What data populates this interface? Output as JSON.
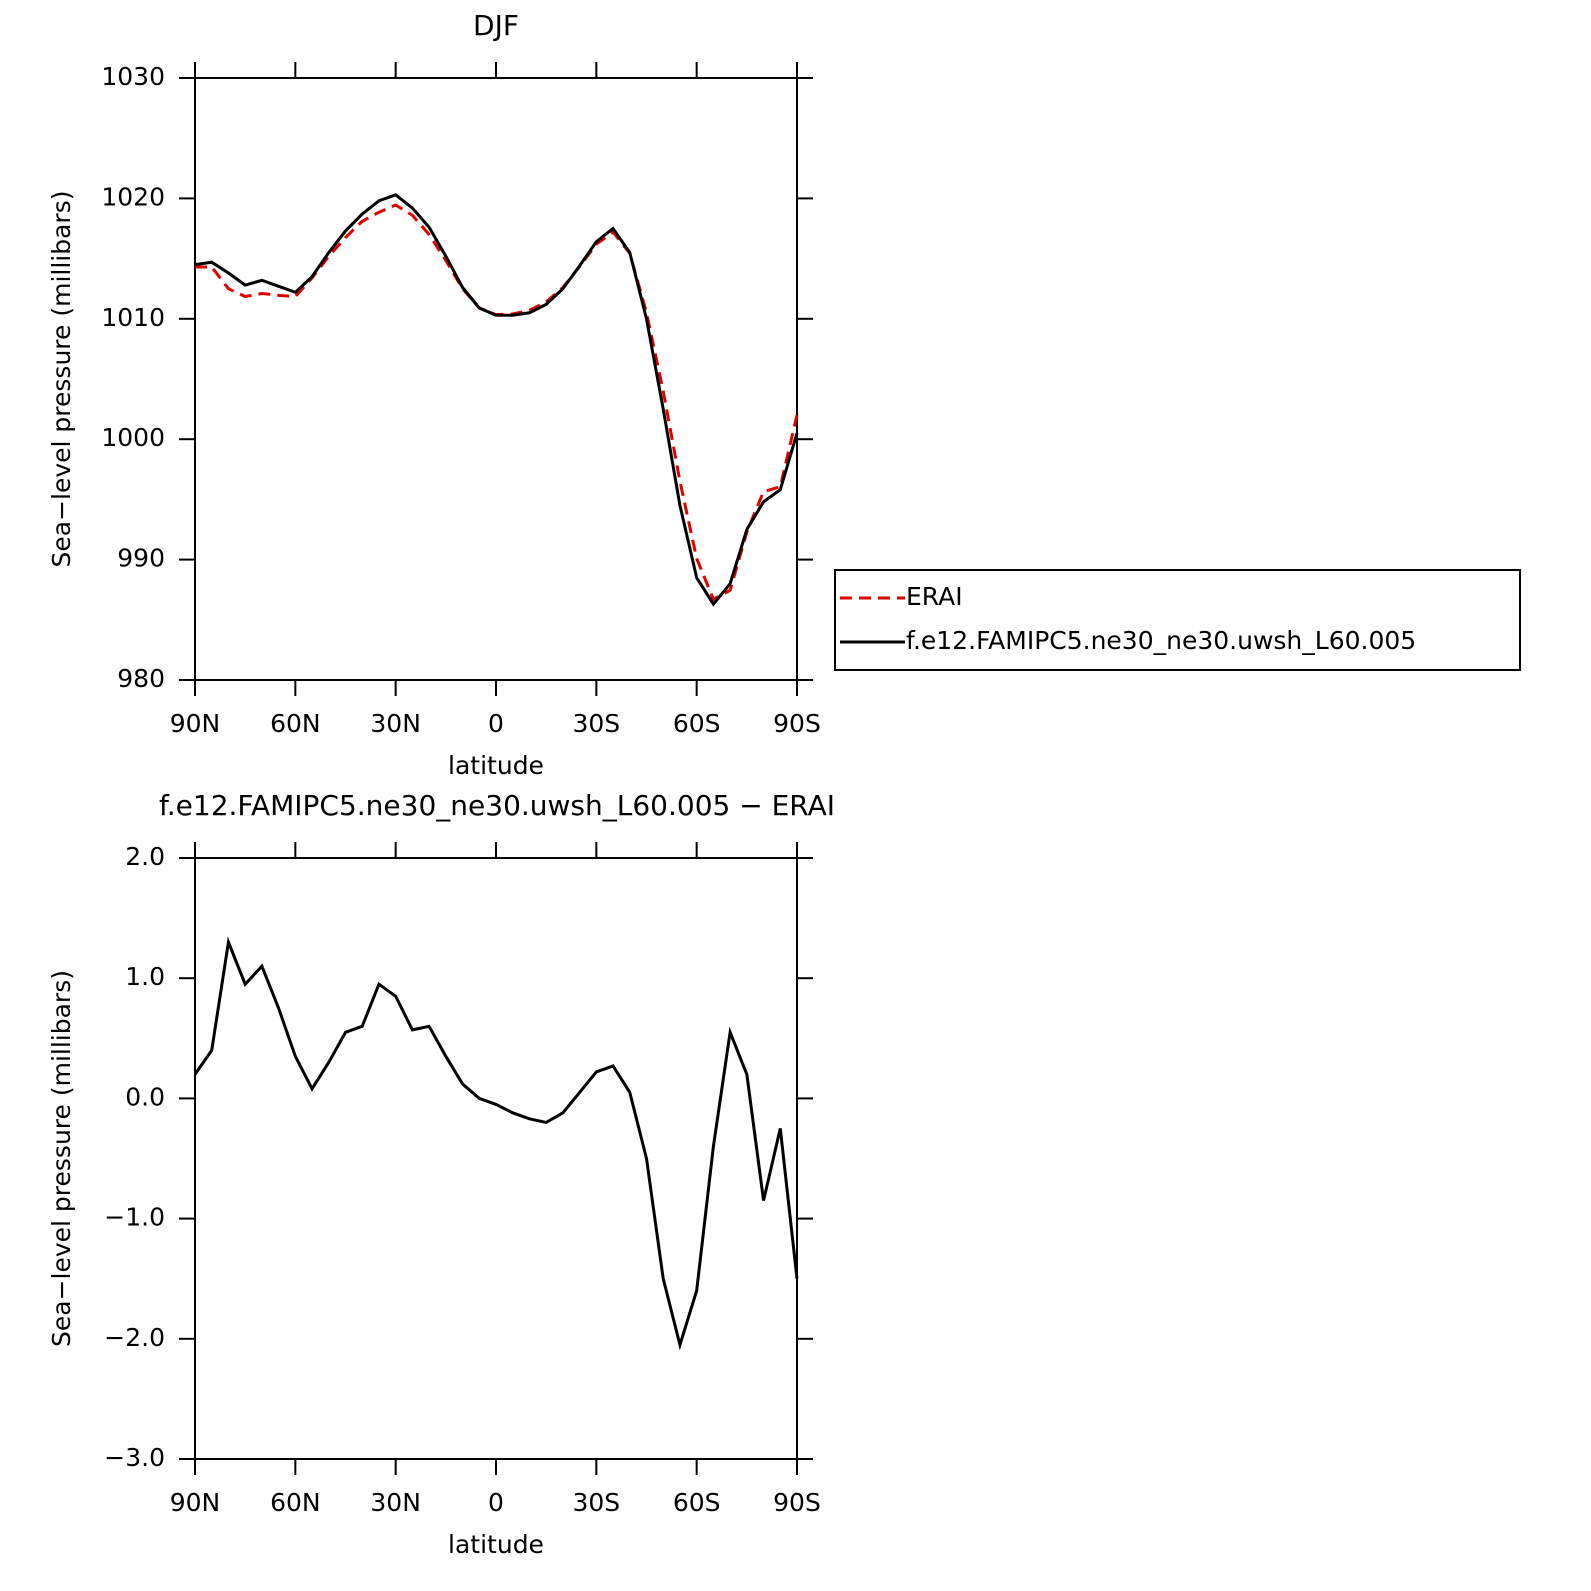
{
  "chart_data": [
    {
      "type": "line",
      "title": "DJF",
      "xlabel": "latitude",
      "ylabel": "Sea−level pressure (millibars)",
      "x": [
        90,
        85,
        80,
        75,
        70,
        65,
        60,
        55,
        50,
        45,
        40,
        35,
        30,
        25,
        20,
        15,
        10,
        5,
        0,
        -5,
        -10,
        -15,
        -20,
        -25,
        -30,
        -35,
        -40,
        -45,
        -50,
        -55,
        -60,
        -65,
        -70,
        -75,
        -80,
        -85,
        -90
      ],
      "xlim": [
        90,
        -90
      ],
      "xticks": [
        {
          "value": 90,
          "label": "90N"
        },
        {
          "value": 60,
          "label": "60N"
        },
        {
          "value": 30,
          "label": "30N"
        },
        0,
        {
          "value": -30,
          "label": "30S"
        },
        {
          "value": -60,
          "label": "60S"
        },
        {
          "value": -90,
          "label": "90S"
        }
      ],
      "ylim": [
        980,
        1030
      ],
      "yticks": [
        980,
        990,
        1000,
        1010,
        1020,
        1030
      ],
      "legend": "right",
      "series": [
        {
          "name": "ERAI",
          "color": "#e00000",
          "linestyle": "dashed",
          "values": [
            1014.3,
            1014.3,
            1012.5,
            1011.85,
            1012.1,
            1011.95,
            1011.85,
            1013.4,
            1015.2,
            1016.75,
            1018.1,
            1018.85,
            1019.45,
            1018.6,
            1017.0,
            1014.85,
            1012.5,
            1010.9,
            1010.35,
            1010.4,
            1010.7,
            1011.4,
            1012.6,
            1014.35,
            1016.2,
            1017.2,
            1015.45,
            1010.5,
            1004.0,
            996.5,
            990.1,
            986.7,
            987.45,
            992.3,
            995.65,
            996.05,
            1002.0
          ]
        },
        {
          "name": "f.e12.FAMIPC5.ne30_ne30.uwsh_L60.005",
          "color": "#000000",
          "linestyle": "solid",
          "values": [
            1014.5,
            1014.7,
            1013.8,
            1012.8,
            1013.2,
            1012.7,
            1012.2,
            1013.5,
            1015.5,
            1017.3,
            1018.7,
            1019.8,
            1020.3,
            1019.2,
            1017.6,
            1015.2,
            1012.6,
            1010.9,
            1010.3,
            1010.3,
            1010.5,
            1011.2,
            1012.5,
            1014.4,
            1016.4,
            1017.5,
            1015.5,
            1010.0,
            1002.5,
            994.5,
            988.5,
            986.3,
            988.0,
            992.5,
            994.8,
            995.8,
            1000.5
          ]
        }
      ]
    },
    {
      "type": "line",
      "title": "f.e12.FAMIPC5.ne30_ne30.uwsh_L60.005 − ERAI",
      "xlabel": "latitude",
      "ylabel": "Sea−level pressure (millibars)",
      "x": [
        90,
        85,
        80,
        75,
        70,
        65,
        60,
        55,
        50,
        45,
        40,
        35,
        30,
        25,
        20,
        15,
        10,
        5,
        0,
        -5,
        -10,
        -15,
        -20,
        -25,
        -30,
        -35,
        -40,
        -45,
        -50,
        -55,
        -60,
        -65,
        -70,
        -75,
        -80,
        -85,
        -90
      ],
      "xlim": [
        90,
        -90
      ],
      "xticks": [
        {
          "value": 90,
          "label": "90N"
        },
        {
          "value": 60,
          "label": "60N"
        },
        {
          "value": 30,
          "label": "30N"
        },
        0,
        {
          "value": -30,
          "label": "30S"
        },
        {
          "value": -60,
          "label": "60S"
        },
        {
          "value": -90,
          "label": "90S"
        }
      ],
      "ylim": [
        -3,
        2
      ],
      "yticks": [
        {
          "value": -3,
          "label": "−3.0"
        },
        {
          "value": -2,
          "label": "−2.0"
        },
        {
          "value": -1,
          "label": "−1.0"
        },
        {
          "value": 0,
          "label": "0.0"
        },
        {
          "value": 1,
          "label": "1.0"
        },
        {
          "value": 2,
          "label": "2.0"
        }
      ],
      "color": "#000000",
      "values": [
        0.2,
        0.4,
        1.3,
        0.95,
        1.1,
        0.75,
        0.35,
        0.08,
        0.3,
        0.55,
        0.6,
        0.95,
        0.85,
        0.57,
        0.6,
        0.35,
        0.12,
        0.0,
        -0.05,
        -0.12,
        -0.17,
        -0.2,
        -0.12,
        0.05,
        0.22,
        0.27,
        0.05,
        -0.5,
        -1.5,
        -2.05,
        -1.6,
        -0.4,
        0.55,
        0.2,
        -0.85,
        -0.25,
        -1.5
      ]
    }
  ]
}
